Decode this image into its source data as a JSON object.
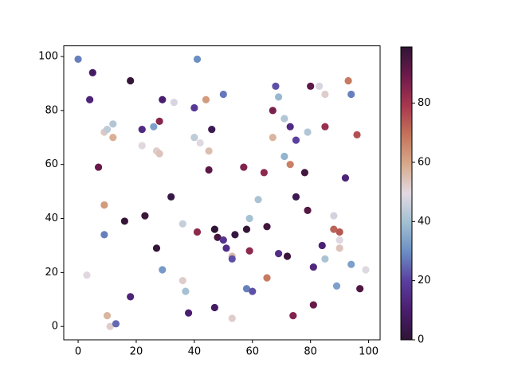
{
  "chart_data": {
    "type": "scatter",
    "colormap": "twilight_shifted",
    "x": [
      0,
      5,
      4,
      18,
      41,
      50,
      29,
      22,
      26,
      28,
      33,
      40,
      44,
      46,
      40,
      42,
      45,
      22,
      27,
      28,
      9,
      10,
      12,
      12,
      7,
      45,
      57,
      64,
      68,
      69,
      67,
      71,
      73,
      75,
      67,
      71,
      73,
      78,
      80,
      83,
      85,
      94,
      93,
      85,
      79,
      96,
      92,
      32,
      16,
      23,
      9,
      9,
      27,
      29,
      3,
      18,
      10,
      11,
      13,
      36,
      36,
      37,
      38,
      41,
      47,
      48,
      50,
      51,
      53,
      53,
      54,
      58,
      59,
      62,
      65,
      59,
      58,
      60,
      53,
      47,
      65,
      69,
      72,
      75,
      79,
      81,
      84,
      85,
      88,
      88,
      90,
      90,
      90,
      89,
      94,
      99,
      97,
      81,
      74
    ],
    "y": [
      99,
      94,
      84,
      91,
      99,
      86,
      84,
      73,
      74,
      76,
      83,
      81,
      84,
      73,
      70,
      68,
      65,
      67,
      65,
      64,
      72,
      73,
      75,
      70,
      59,
      58,
      59,
      57,
      89,
      85,
      80,
      77,
      74,
      69,
      70,
      63,
      60,
      57,
      89,
      89,
      86,
      86,
      91,
      74,
      72,
      71,
      55,
      48,
      39,
      41,
      45,
      34,
      29,
      21,
      19,
      11,
      4,
      0,
      1,
      38,
      17,
      13,
      5,
      35,
      36,
      33,
      32,
      29,
      26,
      25,
      34,
      36,
      40,
      47,
      37,
      28,
      14,
      13,
      3,
      7,
      18,
      27,
      26,
      48,
      43,
      22,
      30,
      25,
      41,
      36,
      35,
      32,
      29,
      15,
      23,
      21,
      14,
      8,
      4
    ],
    "c": [
      28,
      8,
      12,
      98,
      30,
      27,
      10,
      14,
      33,
      85,
      48,
      18,
      62,
      5,
      44,
      49,
      55,
      50,
      52,
      54,
      53,
      44,
      42,
      58,
      90,
      92,
      86,
      84,
      22,
      38,
      87,
      42,
      14,
      20,
      57,
      37,
      67,
      96,
      92,
      48,
      52,
      28,
      68,
      82,
      42,
      75,
      12,
      3,
      98,
      97,
      62,
      28,
      98,
      32,
      50,
      12,
      57,
      52,
      25,
      45,
      52,
      40,
      10,
      84,
      99,
      95,
      17,
      15,
      56,
      22,
      2,
      98,
      40,
      41,
      96,
      84,
      28,
      22,
      52,
      8,
      68,
      15,
      97,
      5,
      93,
      13,
      11,
      41,
      47,
      72,
      74,
      49,
      54,
      33,
      33,
      49,
      94,
      90,
      86
    ],
    "clim": [
      0,
      99
    ],
    "xlim": [
      -4.95,
      103.95
    ],
    "ylim": [
      -4.95,
      103.95
    ],
    "xticks": [
      0,
      20,
      40,
      60,
      80,
      100
    ],
    "yticks": [
      0,
      20,
      40,
      60,
      80,
      100
    ],
    "cticks": [
      0,
      20,
      40,
      60,
      80
    ]
  }
}
